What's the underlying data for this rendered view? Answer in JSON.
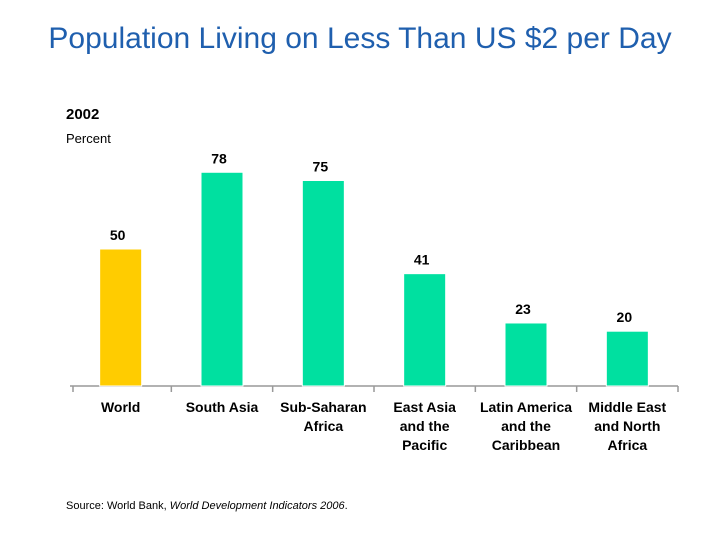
{
  "chart_data": {
    "type": "bar",
    "title": "Population Living on Less Than US $2 per Day",
    "subtitle": "2002",
    "ylabel": "Percent",
    "xlabel": "",
    "categories": [
      [
        "World"
      ],
      [
        "South Asia"
      ],
      [
        "Sub-Saharan",
        "Africa"
      ],
      [
        "East Asia",
        "and the",
        "Pacific"
      ],
      [
        "Latin America",
        "and the",
        "Caribbean"
      ],
      [
        "Middle East",
        "and North",
        "Africa"
      ]
    ],
    "values": [
      50,
      78,
      75,
      41,
      23,
      20
    ],
    "bar_colors": [
      "#ffcc00",
      "#00e0a0",
      "#00e0a0",
      "#00e0a0",
      "#00e0a0",
      "#00e0a0"
    ],
    "ylim": [
      0,
      100
    ],
    "grid": false,
    "legend": "none"
  },
  "source": {
    "prefix": "Source: World Bank, ",
    "publication": "World Development Indicators 2006",
    "suffix": "."
  },
  "colors": {
    "title": "#1f5fae",
    "axis": "#999999",
    "bar_edge": "#ffffff"
  }
}
